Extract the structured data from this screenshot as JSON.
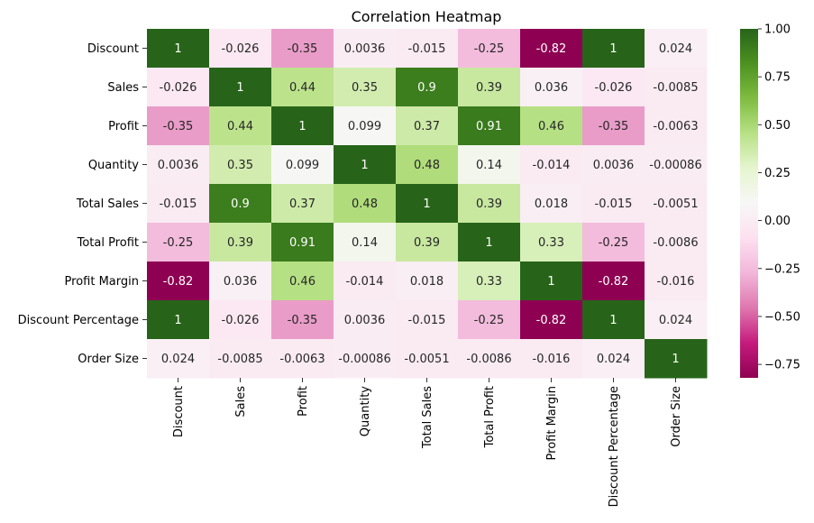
{
  "chart_data": {
    "type": "heatmap",
    "title": "Correlation Heatmap",
    "xlabel": "",
    "ylabel": "",
    "row_labels": [
      "Discount",
      "Sales",
      "Profit",
      "Quantity",
      "Total Sales",
      "Total Profit",
      "Profit Margin",
      "Discount Percentage",
      "Order Size"
    ],
    "col_labels": [
      "Discount",
      "Sales",
      "Profit",
      "Quantity",
      "Total Sales",
      "Total Profit",
      "Profit Margin",
      "Discount Percentage",
      "Order Size"
    ],
    "values": [
      [
        1,
        -0.026,
        -0.35,
        0.0036,
        -0.015,
        -0.25,
        -0.82,
        1,
        0.024
      ],
      [
        -0.026,
        1,
        0.44,
        0.35,
        0.9,
        0.39,
        0.036,
        -0.026,
        -0.0085
      ],
      [
        -0.35,
        0.44,
        1,
        0.099,
        0.37,
        0.91,
        0.46,
        -0.35,
        -0.0063
      ],
      [
        0.0036,
        0.35,
        0.099,
        1,
        0.48,
        0.14,
        -0.014,
        0.0036,
        -0.00086
      ],
      [
        -0.015,
        0.9,
        0.37,
        0.48,
        1,
        0.39,
        0.018,
        -0.015,
        -0.0051
      ],
      [
        -0.25,
        0.39,
        0.91,
        0.14,
        0.39,
        1,
        0.33,
        -0.25,
        -0.0086
      ],
      [
        -0.82,
        0.036,
        0.46,
        -0.014,
        0.018,
        0.33,
        1,
        -0.82,
        -0.016
      ],
      [
        1,
        -0.026,
        -0.35,
        0.0036,
        -0.015,
        -0.25,
        -0.82,
        1,
        0.024
      ],
      [
        0.024,
        -0.0085,
        -0.0063,
        -0.00086,
        -0.0051,
        -0.0086,
        -0.016,
        0.024,
        1
      ]
    ],
    "cell_labels": [
      [
        "1",
        "-0.026",
        "-0.35",
        "0.0036",
        "-0.015",
        "-0.25",
        "-0.82",
        "1",
        "0.024"
      ],
      [
        "-0.026",
        "1",
        "0.44",
        "0.35",
        "0.9",
        "0.39",
        "0.036",
        "-0.026",
        "-0.0085"
      ],
      [
        "-0.35",
        "0.44",
        "1",
        "0.099",
        "0.37",
        "0.91",
        "0.46",
        "-0.35",
        "-0.0063"
      ],
      [
        "0.0036",
        "0.35",
        "0.099",
        "1",
        "0.48",
        "0.14",
        "-0.014",
        "0.0036",
        "-0.00086"
      ],
      [
        "-0.015",
        "0.9",
        "0.37",
        "0.48",
        "1",
        "0.39",
        "0.018",
        "-0.015",
        "-0.0051"
      ],
      [
        "-0.25",
        "0.39",
        "0.91",
        "0.14",
        "0.39",
        "1",
        "0.33",
        "-0.25",
        "-0.0086"
      ],
      [
        "-0.82",
        "0.036",
        "0.46",
        "-0.014",
        "0.018",
        "0.33",
        "1",
        "-0.82",
        "-0.016"
      ],
      [
        "1",
        "-0.026",
        "-0.35",
        "0.0036",
        "-0.015",
        "-0.25",
        "-0.82",
        "1",
        "0.024"
      ],
      [
        "0.024",
        "-0.0085",
        "-0.0063",
        "-0.00086",
        "-0.0051",
        "-0.0086",
        "-0.016",
        "0.024",
        "1"
      ]
    ],
    "colormap": "PiYG",
    "vmin": -0.82,
    "vmax": 1,
    "colorbar": {
      "ticks": [
        1.0,
        0.75,
        0.5,
        0.25,
        0.0,
        -0.25,
        -0.5,
        -0.75
      ],
      "tick_labels": [
        "1.00",
        "0.75",
        "0.50",
        "0.25",
        "0.00",
        "−0.25",
        "−0.50",
        "−0.75"
      ]
    },
    "grid": false,
    "legend": "colorbar-right"
  }
}
